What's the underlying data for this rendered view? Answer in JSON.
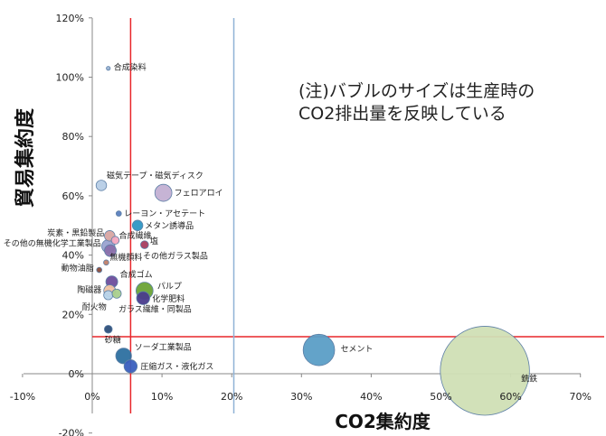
{
  "chart_data": {
    "type": "scatter",
    "subtype": "bubble",
    "xlabel": "CO2集約度",
    "ylabel": "貿易集約度",
    "xlim": [
      -10,
      70
    ],
    "ylim": [
      -20,
      120
    ],
    "x_ticks": [
      -10,
      0,
      10,
      20,
      30,
      40,
      50,
      60,
      70
    ],
    "y_ticks": [
      -20,
      0,
      20,
      40,
      60,
      80,
      100,
      120
    ],
    "x_tick_labels": [
      "-10%",
      "0%",
      "10%",
      "20%",
      "30%",
      "40%",
      "50%",
      "60%",
      "70%"
    ],
    "y_tick_labels": [
      "-20%",
      "0%",
      "20%",
      "40%",
      "60%",
      "80%",
      "100%",
      "120%"
    ],
    "grid": false,
    "legend": "none",
    "annotation": {
      "line1": "(注)バブルのサイズは生産時の",
      "line2": "CO2排出量を反映している"
    },
    "reference_lines": [
      {
        "orientation": "vertical",
        "x": 5.5,
        "color": "#e8262a"
      },
      {
        "orientation": "horizontal",
        "y": 12.5,
        "color": "#e8262a"
      },
      {
        "orientation": "vertical",
        "x": 20.3,
        "color": "#8fb2d6"
      }
    ],
    "points": [
      {
        "label": "合成染料",
        "x": 2.3,
        "y": 103,
        "size": 1.5,
        "color": "#9ab3d3"
      },
      {
        "label": "磁気テープ・磁気ディスク",
        "x": 1.3,
        "y": 63.5,
        "size": 4,
        "color": "#b7cde6"
      },
      {
        "label": "フェロアロイ",
        "x": 10.2,
        "y": 61,
        "size": 6.5,
        "color": "#c3b0d3"
      },
      {
        "label": "レーヨン・アセテート",
        "x": 3.8,
        "y": 54,
        "size": 2,
        "color": "#5b7fbf"
      },
      {
        "label": "メタン誘導品",
        "x": 6.5,
        "y": 50,
        "size": 4,
        "color": "#2e97c4"
      },
      {
        "label": "炭素・黒鉛製品",
        "x": 2.5,
        "y": 46.5,
        "size": 4,
        "color": "#d8a5a2"
      },
      {
        "label": "合成繊維",
        "x": 3.3,
        "y": 45,
        "size": 3,
        "color": "#f4a8c0"
      },
      {
        "label": "塩",
        "x": 7.5,
        "y": 43.5,
        "size": 3,
        "color": "#a83d60"
      },
      {
        "label": "その他の無機化学工業製品",
        "x": 2.3,
        "y": 43,
        "size": 5,
        "color": "#9aa2d0"
      },
      {
        "label": "その他ガラス製品",
        "x": 2.6,
        "y": 41.5,
        "size": 4.5,
        "color": "#8a6fab"
      },
      {
        "label": "無機顔料",
        "x": 2.0,
        "y": 37.5,
        "size": 2,
        "color": "#bf7f6a"
      },
      {
        "label": "動物油脂",
        "x": 1.0,
        "y": 35,
        "size": 2,
        "color": "#8b4d3a"
      },
      {
        "label": "合成ゴム",
        "x": 2.8,
        "y": 31,
        "size": 4.5,
        "color": "#6d4d9c"
      },
      {
        "label": "パルプ",
        "x": 7.5,
        "y": 28,
        "size": 6.5,
        "color": "#6ca336"
      },
      {
        "label": "陶磁器",
        "x": 2.5,
        "y": 28,
        "size": 4.5,
        "color": "#f1c3a2"
      },
      {
        "label": "化学肥料",
        "x": 7.3,
        "y": 25.5,
        "size": 5,
        "color": "#4a3b8c"
      },
      {
        "label": "耐火物",
        "x": 2.3,
        "y": 26.5,
        "size": 3.5,
        "color": "#b7d4ea"
      },
      {
        "label": "ガラス繊維・同製品",
        "x": 3.5,
        "y": 27,
        "size": 3.5,
        "color": "#a9cf8d"
      },
      {
        "label": "砂糖",
        "x": 2.3,
        "y": 15,
        "size": 3,
        "color": "#2d4f7a"
      },
      {
        "label": "ソーダ工業製品",
        "x": 4.5,
        "y": 6,
        "size": 6,
        "color": "#2d70a0"
      },
      {
        "label": "圧縮ガス・液化ガス",
        "x": 5.5,
        "y": 2.5,
        "size": 5,
        "color": "#3a5fbe"
      },
      {
        "label": "セメント",
        "x": 32.5,
        "y": 8,
        "size": 12,
        "color": "#5b9ec6"
      },
      {
        "label": "銑鉄",
        "x": 56.3,
        "y": 1,
        "size": 34,
        "color": "#d0dfb5"
      }
    ]
  }
}
